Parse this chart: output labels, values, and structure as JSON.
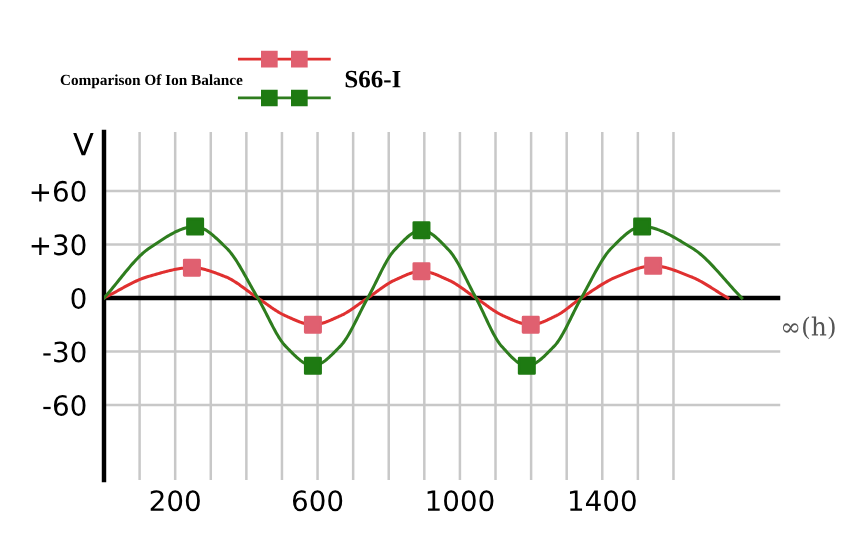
{
  "chart_data": {
    "type": "line",
    "title": "Comparison Of Ion Balance",
    "legend": "top",
    "xlabel": "∞(h)",
    "ylabel": "V",
    "xlim": [
      0,
      1900
    ],
    "ylim": [
      -102,
      93
    ],
    "grid": true,
    "xticks": [
      {
        "value": 100,
        "label": null
      },
      {
        "value": 200,
        "label": "200"
      },
      {
        "value": 300,
        "label": null
      },
      {
        "value": 400,
        "label": null
      },
      {
        "value": 500,
        "label": null
      },
      {
        "value": 600,
        "label": "600"
      },
      {
        "value": 700,
        "label": null
      },
      {
        "value": 800,
        "label": null
      },
      {
        "value": 900,
        "label": null
      },
      {
        "value": 1000,
        "label": "1000"
      },
      {
        "value": 1100,
        "label": null
      },
      {
        "value": 1200,
        "label": null
      },
      {
        "value": 1300,
        "label": null
      },
      {
        "value": 1400,
        "label": "1400"
      },
      {
        "value": 1500,
        "label": null
      },
      {
        "value": 1600,
        "label": null
      }
    ],
    "yticks": [
      {
        "value": 60,
        "label": "+60"
      },
      {
        "value": 30,
        "label": "+30"
      },
      0,
      -30,
      -60
    ],
    "ref_lines": [
      {
        "axis": "y",
        "value": 0,
        "color": "#000000"
      }
    ],
    "series": [
      {
        "name": "S66-I",
        "color": "#e03030",
        "marker": "none",
        "x": [
          0,
          124,
          247,
          340,
          432,
          510,
          587,
          664,
          741,
          817,
          892,
          968,
          1045,
          1122,
          1199,
          1270,
          1341,
          1442,
          1543,
          1648,
          1753
        ],
        "values": [
          0,
          12,
          17,
          12,
          0,
          -10,
          -15,
          -10,
          0,
          10,
          15,
          10,
          0,
          -10,
          -15,
          -10,
          0,
          12,
          18,
          12,
          0
        ]
      },
      {
        "color": "#2e7d1e",
        "marker": "none",
        "x": [
          0,
          128,
          256,
          344,
          432,
          510,
          587,
          664,
          741,
          817,
          892,
          968,
          1045,
          1117,
          1188,
          1265,
          1341,
          1426,
          1512,
          1652,
          1792
        ],
        "values": [
          0,
          28,
          40,
          28,
          0,
          -27,
          -38,
          -27,
          0,
          27,
          38,
          27,
          0,
          -27,
          -38,
          -27,
          0,
          28,
          40,
          28,
          0
        ]
      },
      {
        "type": "scatter",
        "color": "#e06070",
        "marker": "square",
        "x": [
          247,
          587,
          892,
          1199,
          1543
        ],
        "values": [
          17,
          -15,
          15,
          -15,
          18
        ]
      },
      {
        "type": "scatter",
        "color": "#1e7a12",
        "marker": "square",
        "x": [
          256,
          587,
          892,
          1188,
          1512
        ],
        "values": [
          40,
          -38,
          38,
          -38,
          40
        ]
      }
    ]
  }
}
